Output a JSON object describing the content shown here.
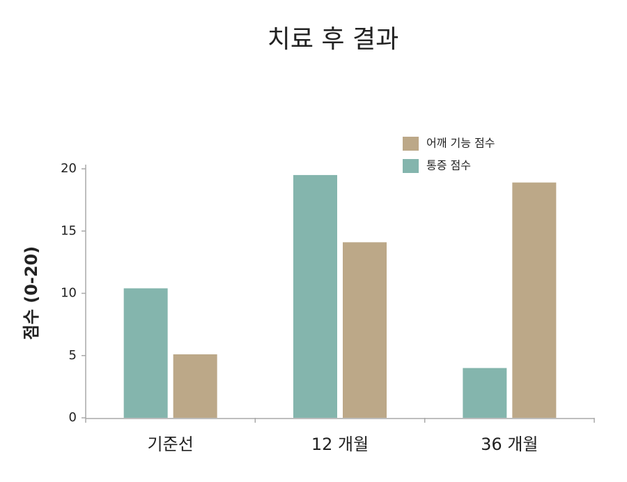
{
  "chart_data": {
    "type": "bar",
    "title": "치료 후 결과",
    "y_label": "점수 (0-20)",
    "categories": [
      "기준선",
      "12 개월",
      "36 개월"
    ],
    "series": [
      {
        "name": "통증 점수",
        "color": "#84b5ad",
        "values": [
          10.4,
          19.5,
          4.0
        ]
      },
      {
        "name": "어깨 기능 점수",
        "color": "#bca888",
        "values": [
          5.1,
          14.1,
          18.9
        ]
      }
    ],
    "ylim": [
      0,
      20
    ],
    "yticks": [
      0,
      5,
      10,
      15,
      20
    ],
    "grid": false,
    "legend": "top-right"
  }
}
